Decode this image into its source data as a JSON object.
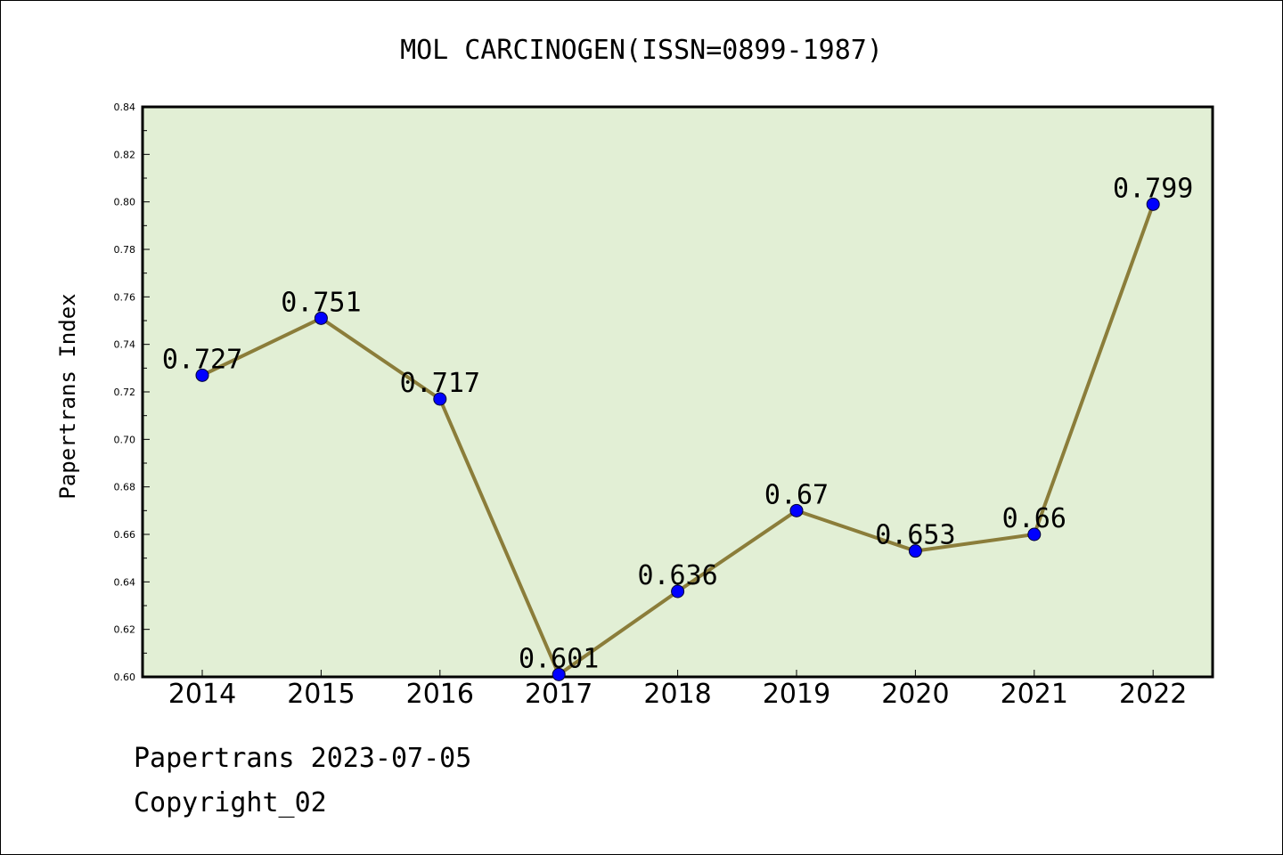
{
  "chart_data": {
    "type": "line",
    "title": "MOL CARCINOGEN(ISSN=0899-1987)",
    "ylabel": "Papertrans Index",
    "xlabel": "",
    "categories": [
      "2014",
      "2015",
      "2016",
      "2017",
      "2018",
      "2019",
      "2020",
      "2021",
      "2022"
    ],
    "series": [
      {
        "values": [
          0.727,
          0.751,
          0.717,
          0.601,
          0.636,
          0.67,
          0.653,
          0.66,
          0.799
        ],
        "labels": [
          "0.727",
          "0.751",
          "0.717",
          "0.601",
          "0.636",
          "0.67",
          "0.653",
          "0.66",
          "0.799"
        ]
      }
    ],
    "ylim": [
      0.6,
      0.84
    ],
    "yticks": [
      "0.60",
      "0.62",
      "0.64",
      "0.66",
      "0.68",
      "0.70",
      "0.72",
      "0.74",
      "0.76",
      "0.78",
      "0.80",
      "0.82",
      "0.84"
    ],
    "grid": false,
    "colors": {
      "plot_bg": "#e2efd5",
      "line": "#8b7d3a",
      "marker": "#0000ff"
    }
  },
  "footer": {
    "line1": "Papertrans 2023-07-05",
    "line2": "Copyright_02"
  }
}
